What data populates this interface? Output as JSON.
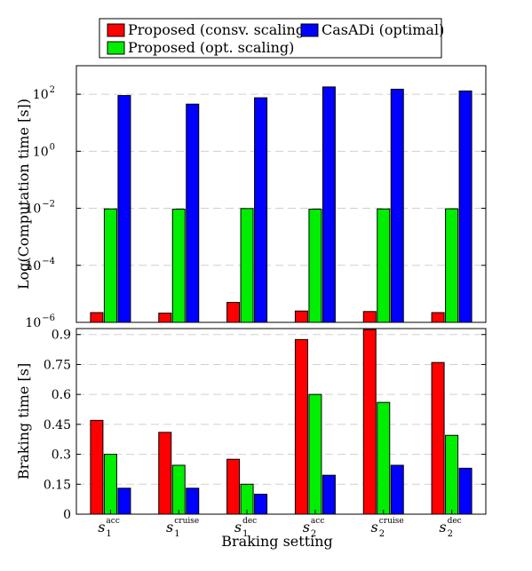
{
  "colors": {
    "proposed_consv": "#ff0000",
    "proposed_opt": "#00ee00",
    "casadi": "#0000ff",
    "grid": "#d0d0d0"
  },
  "legend": {
    "placement": "top-center",
    "items": [
      {
        "label": "Proposed (consv. scaling)",
        "color": "#ff0000"
      },
      {
        "label": "CasADi (optimal)",
        "color": "#0000ff"
      },
      {
        "label": "Proposed (opt. scaling)",
        "color": "#00ee00"
      }
    ]
  },
  "xlabel": "Braking setting",
  "categories": [
    {
      "base": "s",
      "sub": "1",
      "sup": "acc"
    },
    {
      "base": "s",
      "sub": "1",
      "sup": "cruise"
    },
    {
      "base": "s",
      "sub": "1",
      "sup": "dec"
    },
    {
      "base": "s",
      "sub": "2",
      "sup": "acc"
    },
    {
      "base": "s",
      "sub": "2",
      "sup": "cruise"
    },
    {
      "base": "s",
      "sub": "2",
      "sup": "dec"
    }
  ],
  "chart_data": [
    {
      "type": "bar",
      "ylabel": "Log(Computation time [s])",
      "yscale": "log",
      "ylim": [
        1e-06,
        1000
      ],
      "yticks": [
        {
          "value": 1e-06,
          "base": "10",
          "exp": "−6"
        },
        {
          "value": 0.0001,
          "base": "10",
          "exp": "−4"
        },
        {
          "value": 0.01,
          "base": "10",
          "exp": "−2"
        },
        {
          "value": 1,
          "base": "10",
          "exp": "0"
        },
        {
          "value": 100,
          "base": "10",
          "exp": "2"
        }
      ],
      "grid": true,
      "series": [
        {
          "name": "Proposed (consv. scaling)",
          "color": "#ff0000",
          "values": [
            2.2e-06,
            2.1e-06,
            5e-06,
            2.5e-06,
            2.4e-06,
            2.2e-06
          ]
        },
        {
          "name": "Proposed (opt. scaling)",
          "color": "#00ee00",
          "values": [
            0.0095,
            0.0093,
            0.0098,
            0.0093,
            0.0095,
            0.0096
          ]
        },
        {
          "name": "CasADi (optimal)",
          "color": "#0000ff",
          "values": [
            90,
            45,
            75,
            180,
            150,
            130
          ]
        }
      ]
    },
    {
      "type": "bar",
      "ylabel": "Braking time [s]",
      "yscale": "linear",
      "ylim": [
        0,
        0.93
      ],
      "yticks": [
        {
          "value": 0,
          "label": "0"
        },
        {
          "value": 0.15,
          "label": "0.15"
        },
        {
          "value": 0.3,
          "label": "0.3"
        },
        {
          "value": 0.45,
          "label": "0.45"
        },
        {
          "value": 0.6,
          "label": "0.6"
        },
        {
          "value": 0.75,
          "label": "0.75"
        },
        {
          "value": 0.9,
          "label": "0.9"
        }
      ],
      "grid": true,
      "series": [
        {
          "name": "Proposed (consv. scaling)",
          "color": "#ff0000",
          "values": [
            0.47,
            0.41,
            0.275,
            0.875,
            0.925,
            0.76
          ]
        },
        {
          "name": "Proposed (opt. scaling)",
          "color": "#00ee00",
          "values": [
            0.3,
            0.245,
            0.15,
            0.6,
            0.56,
            0.395
          ]
        },
        {
          "name": "CasADi (optimal)",
          "color": "#0000ff",
          "values": [
            0.13,
            0.13,
            0.1,
            0.195,
            0.245,
            0.23
          ]
        }
      ]
    }
  ]
}
